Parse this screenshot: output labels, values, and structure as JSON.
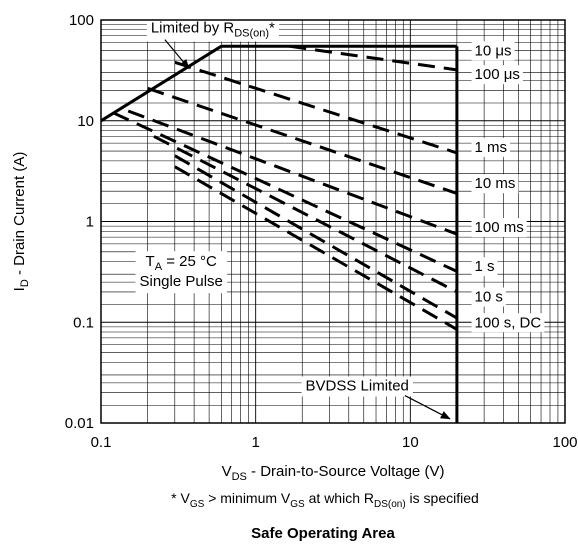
{
  "chart_data": {
    "type": "line",
    "title": "Safe Operating Area",
    "note": {
      "prefix": "* V",
      "sub1": "GS",
      "mid": " > minimum V",
      "sub2": "GS",
      "mid2": " at which R",
      "sub3": "DS(on)",
      "suffix": " is specified"
    },
    "xlabel": {
      "main": "V",
      "sub": "DS",
      "rest": " - Drain-to-Source Voltage (V)"
    },
    "ylabel": {
      "main": "I",
      "sub": "D",
      "rest": " - Drain Current (A)"
    },
    "x_scale": "log",
    "y_scale": "log",
    "xlim": [
      0.1,
      100
    ],
    "ylim": [
      0.01,
      100
    ],
    "x_ticks": [
      {
        "value": 0.1,
        "label": "0.1"
      },
      {
        "value": 1,
        "label": "1"
      },
      {
        "value": 10,
        "label": "10"
      },
      {
        "value": 100,
        "label": "100"
      }
    ],
    "y_ticks": [
      {
        "value": 0.01,
        "label": "0.01"
      },
      {
        "value": 0.1,
        "label": "0.1"
      },
      {
        "value": 1,
        "label": "1"
      },
      {
        "value": 10,
        "label": "10"
      },
      {
        "value": 100,
        "label": "100"
      }
    ],
    "grid": true,
    "limit_lines": [
      {
        "name": "rds-on-limit",
        "style": "solid",
        "points": [
          [
            0.1,
            10
          ],
          [
            0.6,
            55
          ]
        ]
      },
      {
        "name": "current-limit",
        "style": "solid",
        "points": [
          [
            0.6,
            55
          ],
          [
            20,
            55
          ]
        ]
      },
      {
        "name": "bvdss-limit",
        "style": "solid",
        "points": [
          [
            20,
            55
          ],
          [
            20,
            0.01
          ]
        ]
      }
    ],
    "series": [
      {
        "label": "10 μs",
        "style": "dashed",
        "points": [
          [
            1.65,
            55
          ],
          [
            20,
            32
          ]
        ],
        "label_at": [
          26,
          50
        ]
      },
      {
        "label": "100 μs",
        "style": "dashed",
        "points": [
          [
            0.3,
            38
          ],
          [
            20,
            4.8
          ]
        ],
        "label_at": [
          26,
          29
        ]
      },
      {
        "label": "1 ms",
        "style": "dashed",
        "points": [
          [
            0.2,
            21
          ],
          [
            20,
            1.9
          ]
        ],
        "label_at": [
          26,
          5.5
        ]
      },
      {
        "label": "10 ms",
        "style": "dashed",
        "points": [
          [
            0.15,
            12.5
          ],
          [
            20,
            0.75
          ]
        ],
        "label_at": [
          26,
          2.4
        ]
      },
      {
        "label": "100 ms",
        "style": "dashed",
        "points": [
          [
            0.12,
            12
          ],
          [
            20,
            0.32
          ]
        ],
        "label_at": [
          26,
          0.88
        ]
      },
      {
        "label": "1 s",
        "style": "dashed",
        "points": [
          [
            0.22,
            7
          ],
          [
            20,
            0.2
          ]
        ],
        "label_at": [
          26,
          0.36
        ]
      },
      {
        "label": "10 s",
        "style": "dashed",
        "points": [
          [
            0.3,
            4.5
          ],
          [
            20,
            0.11
          ]
        ],
        "label_at": [
          26,
          0.18
        ]
      },
      {
        "label": "100 s, DC",
        "style": "dashed",
        "points": [
          [
            0.3,
            3.5
          ],
          [
            20,
            0.085
          ]
        ],
        "label_at": [
          26,
          0.1
        ]
      }
    ],
    "annotations": {
      "rds_limit": {
        "prefix": "Limited by R",
        "sub": "DS(on)",
        "suffix": "*",
        "at": [
          0.21,
          75
        ],
        "arrow_to": [
          0.37,
          33
        ]
      },
      "bvdss": {
        "text": "BVDSS Limited",
        "at": [
          2.1,
          0.021
        ],
        "arrow_to": [
          18,
          0.011
        ]
      },
      "conditions": {
        "line1_prefix": "T",
        "line1_sub": "A",
        "line1_suffix": " = 25 °C",
        "line2": "Single Pulse",
        "at": [
          0.33,
          0.3
        ]
      }
    }
  }
}
